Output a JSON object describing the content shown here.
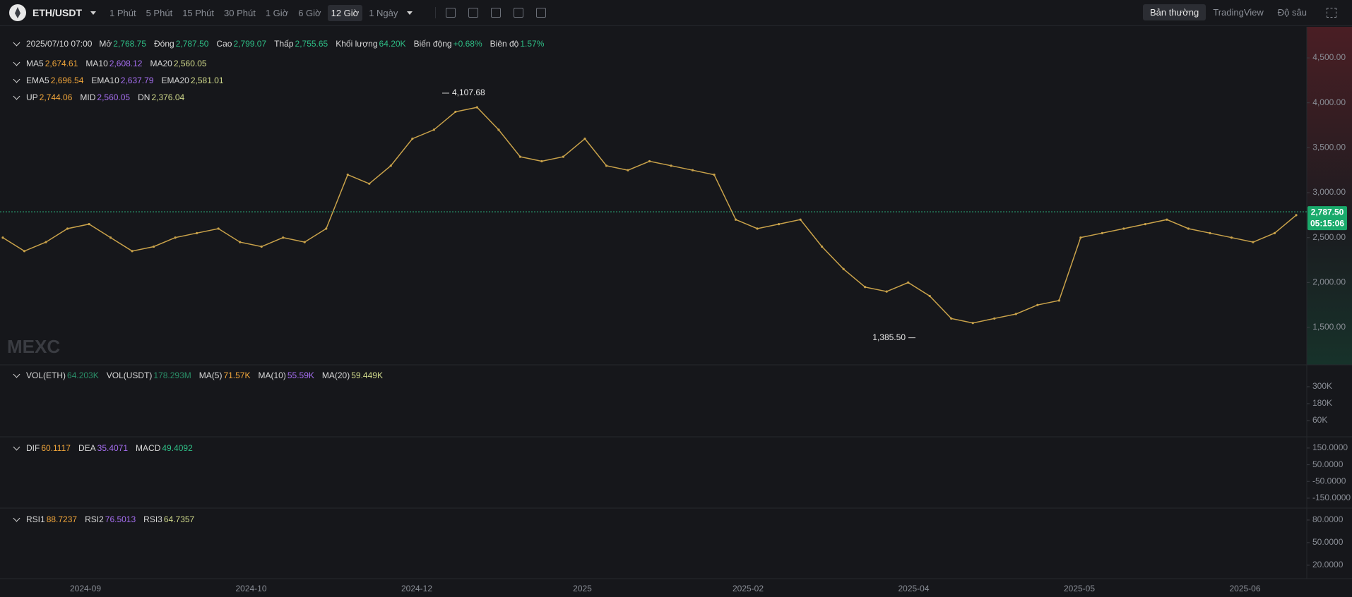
{
  "toolbar": {
    "symbol": "ETH/USDT",
    "intervals": [
      "1 Phút",
      "5 Phút",
      "15 Phút",
      "30 Phút",
      "1 Giờ",
      "6 Giờ",
      "12 Giờ",
      "1 Ngày"
    ],
    "active_interval_index": 6,
    "views": [
      "Bản thường",
      "TradingView",
      "Độ sâu"
    ],
    "active_view_index": 0
  },
  "legends": [
    {
      "items": [
        {
          "label": "2025/07/10 07:00"
        },
        {
          "label": "Mở",
          "value": "2,768.75",
          "color": "#2ebd85"
        },
        {
          "label": "Đóng",
          "value": "2,787.50",
          "color": "#2ebd85"
        },
        {
          "label": "Cao",
          "value": "2,799.07",
          "color": "#2ebd85"
        },
        {
          "label": "Thấp",
          "value": "2,755.65",
          "color": "#2ebd85"
        },
        {
          "label": "Khối lượng",
          "value": "64.20K",
          "color": "#2ebd85"
        },
        {
          "label": "Biến động",
          "value": "+0.68%",
          "color": "#2ebd85"
        },
        {
          "label": "Biên độ",
          "value": "1.57%",
          "color": "#2ebd85"
        }
      ]
    },
    {
      "items": [
        {
          "label": "MA5",
          "value": "2,674.61",
          "color": "#f0a53a"
        },
        {
          "label": "MA10",
          "value": "2,608.12",
          "color": "#a56ef0"
        },
        {
          "label": "MA20",
          "value": "2,560.05",
          "color": "#cfd88a"
        }
      ]
    },
    {
      "items": [
        {
          "label": "EMA5",
          "value": "2,696.54",
          "color": "#f0a53a"
        },
        {
          "label": "EMA10",
          "value": "2,637.79",
          "color": "#a56ef0"
        },
        {
          "label": "EMA20",
          "value": "2,581.01",
          "color": "#cfd88a"
        }
      ]
    },
    {
      "items": [
        {
          "label": "UP",
          "value": "2,744.06",
          "color": "#f0a53a"
        },
        {
          "label": "MID",
          "value": "2,560.05",
          "color": "#a56ef0"
        },
        {
          "label": "DN",
          "value": "2,376.04",
          "color": "#cfd88a"
        }
      ]
    },
    {
      "items": [
        {
          "label": "VOL(ETH)",
          "value": "64.203K",
          "color": "#2a8f68"
        },
        {
          "label": "VOL(USDT)",
          "value": "178.293M",
          "color": "#2a8f68"
        },
        {
          "label": "MA(5)",
          "value": "71.57K",
          "color": "#f0a53a"
        },
        {
          "label": "MA(10)",
          "value": "55.59K",
          "color": "#a56ef0"
        },
        {
          "label": "MA(20)",
          "value": "59.449K",
          "color": "#cfd88a"
        }
      ]
    },
    {
      "items": [
        {
          "label": "DIF",
          "value": "60.1117",
          "color": "#f0a53a"
        },
        {
          "label": "DEA",
          "value": "35.4071",
          "color": "#a56ef0"
        },
        {
          "label": "MACD",
          "value": "49.4092",
          "color": "#2ebd85"
        }
      ]
    },
    {
      "items": [
        {
          "label": "RSI1",
          "value": "88.7237",
          "color": "#f0a53a"
        },
        {
          "label": "RSI2",
          "value": "76.5013",
          "color": "#a56ef0"
        },
        {
          "label": "RSI3",
          "value": "64.7357",
          "color": "#cfd88a"
        }
      ]
    }
  ],
  "watermark": "MEXC",
  "price_pane": {
    "ylim": [
      1100,
      4830
    ],
    "ticks": [
      {
        "value": 4500,
        "label": "4,500.00"
      },
      {
        "value": 4000,
        "label": "4,000.00"
      },
      {
        "value": 3500,
        "label": "3,500.00"
      },
      {
        "value": 3000,
        "label": "3,000.00"
      },
      {
        "value": 2500,
        "label": "2,500.00"
      },
      {
        "value": 2000,
        "label": "2,000.00"
      },
      {
        "value": 1500,
        "label": "1,500.00"
      }
    ],
    "closes": [
      2500,
      2350,
      2450,
      2600,
      2650,
      2500,
      2350,
      2400,
      2500,
      2550,
      2600,
      2450,
      2400,
      2500,
      2450,
      2600,
      3200,
      3100,
      3300,
      3600,
      3700,
      3900,
      3950,
      3700,
      3400,
      3350,
      3400,
      3600,
      3300,
      3250,
      3350,
      3300,
      3250,
      3200,
      2700,
      2600,
      2650,
      2700,
      2400,
      2150,
      1950,
      1900,
      2000,
      1850,
      1600,
      1550,
      1600,
      1650,
      1750,
      1800,
      2500,
      2550,
      2600,
      2650,
      2700,
      2600,
      2550,
      2500,
      2450,
      2550,
      2750
    ],
    "color": "#c9a24a",
    "last_price": {
      "value": 2787.5,
      "label": "2,787.50",
      "countdown": "05:15:06"
    },
    "high_mark": {
      "value": 4107.68,
      "label": "4,107.68"
    },
    "low_mark": {
      "value": 1385.5,
      "label": "1,385.50"
    }
  },
  "volume_pane": {
    "ylim": [
      0,
      450000
    ],
    "ticks": [
      {
        "value": 300000,
        "label": "300K"
      },
      {
        "value": 180000,
        "label": "180K"
      },
      {
        "value": 60000,
        "label": "60K"
      }
    ]
  },
  "macd_pane": {
    "ylim": [
      -201,
      213
    ],
    "ticks": [
      {
        "value": 150,
        "label": "150.0000"
      },
      {
        "value": 50,
        "label": "50.0000"
      },
      {
        "value": -50,
        "label": "-50.0000"
      },
      {
        "value": -150,
        "label": "-150.0000"
      }
    ]
  },
  "rsi_pane": {
    "ylim": [
      4,
      94
    ],
    "ticks": [
      {
        "value": 80,
        "label": "80.0000"
      },
      {
        "value": 50,
        "label": "50.0000"
      },
      {
        "value": 20,
        "label": "20.0000"
      }
    ]
  },
  "x_axis": {
    "labels": [
      "2024-09",
      "2024-10",
      "2024-12",
      "2025",
      "2025-02",
      "2025-04",
      "2025-05",
      "2025-06"
    ]
  }
}
